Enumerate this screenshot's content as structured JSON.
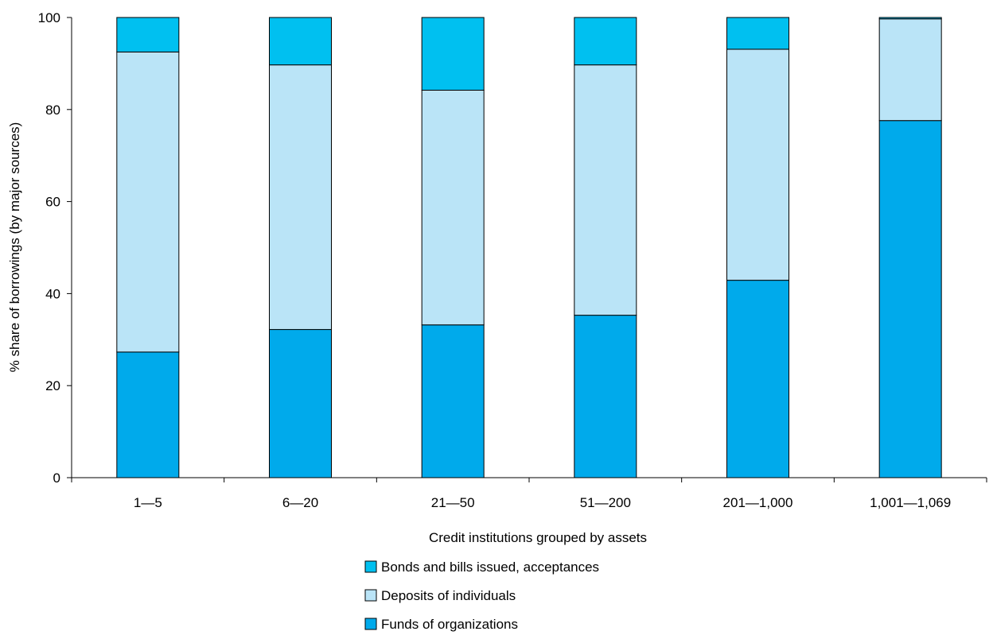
{
  "chart_data": {
    "type": "bar",
    "stacked": true,
    "xlabel": "Credit institutions grouped by assets",
    "ylabel": "% share of borrowings  (by major sources)",
    "ylim": [
      0,
      100
    ],
    "y_ticks": [
      "0",
      "20",
      "40",
      "60",
      "80",
      "100"
    ],
    "categories": [
      "1—5",
      "6—20",
      "21—50",
      "51—200",
      "201—1,000",
      "1,001—1,069"
    ],
    "series": [
      {
        "name": "Funds of organizations",
        "color": "#00AAEB",
        "values": [
          27.3,
          32.2,
          33.2,
          35.3,
          42.9,
          77.6
        ]
      },
      {
        "name": "Deposits of individuals",
        "color": "#BAE4F7",
        "values": [
          65.2,
          57.5,
          51.0,
          54.4,
          50.2,
          22.1
        ]
      },
      {
        "name": "Bonds and bills issued, acceptances",
        "color": "#00C0F0",
        "values": [
          7.5,
          10.3,
          15.8,
          10.3,
          6.9,
          0.3
        ]
      }
    ],
    "legend": {
      "position": "bottom",
      "order": [
        "Bonds and bills issued, acceptances",
        "Deposits of individuals",
        "Funds of organizations"
      ]
    },
    "grid": false
  }
}
